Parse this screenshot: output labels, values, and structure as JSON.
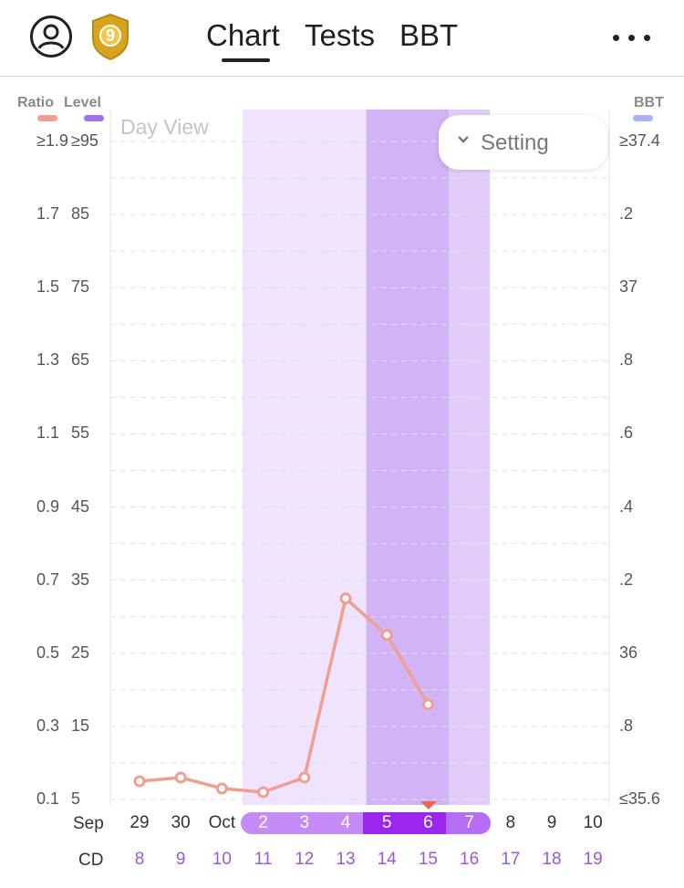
{
  "header": {
    "tabs": [
      "Chart",
      "Tests",
      "BBT"
    ],
    "active_tab": "Chart",
    "badge_number": "9",
    "icons": [
      "user-avatar-icon",
      "shield-badge-icon",
      "more-dots-icon"
    ]
  },
  "legend": {
    "ratio": {
      "label": "Ratio",
      "color": "#f0a091"
    },
    "level": {
      "label": "Level",
      "color": "#a070ef"
    },
    "bbt": {
      "label": "BBT",
      "color": "#a7b3f3"
    }
  },
  "controls": {
    "day_view": "Day View",
    "setting": "Setting"
  },
  "chart_data": {
    "type": "line",
    "ratio_axis": [
      "≥1.9",
      "1.7",
      "1.5",
      "1.3",
      "1.1",
      "0.9",
      "0.7",
      "0.5",
      "0.3",
      "0.1"
    ],
    "level_axis": [
      "≥95",
      "85",
      "75",
      "65",
      "55",
      "45",
      "35",
      "25",
      "15",
      "5"
    ],
    "bbt_axis": [
      "≥37.4",
      ".2",
      "37",
      ".8",
      ".6",
      ".4",
      ".2",
      "36",
      ".8",
      "≤35.6"
    ],
    "x_dates": [
      "29",
      "30",
      "Oct",
      "2",
      "3",
      "4",
      "5",
      "6",
      "7",
      "8",
      "9",
      "10"
    ],
    "month_label": "Sep",
    "cycle_row_label": "CD",
    "cycle_days": [
      "8",
      "9",
      "10",
      "11",
      "12",
      "13",
      "14",
      "15",
      "16",
      "17",
      "18",
      "19"
    ],
    "series": [
      {
        "color": "#ef9f92",
        "ylim": [
          0.1,
          1.9
        ],
        "points": [
          {
            "i": 0,
            "value": 0.15
          },
          {
            "i": 1,
            "value": 0.16
          },
          {
            "i": 2,
            "value": 0.13
          },
          {
            "i": 3,
            "value": 0.12
          },
          {
            "i": 4,
            "value": 0.16
          },
          {
            "i": 5,
            "value": 0.65
          },
          {
            "i": 6,
            "value": 0.55
          },
          {
            "i": 7,
            "value": 0.36
          }
        ]
      }
    ],
    "highlight_bands": [
      {
        "from": "2",
        "to": "4",
        "color": "#efe3fd"
      },
      {
        "from": "5",
        "to": "6",
        "color": "#d1b4f5"
      },
      {
        "from": "7",
        "to": "7",
        "color": "#e2cdfa"
      }
    ],
    "today_marker": "6",
    "grid": true
  }
}
